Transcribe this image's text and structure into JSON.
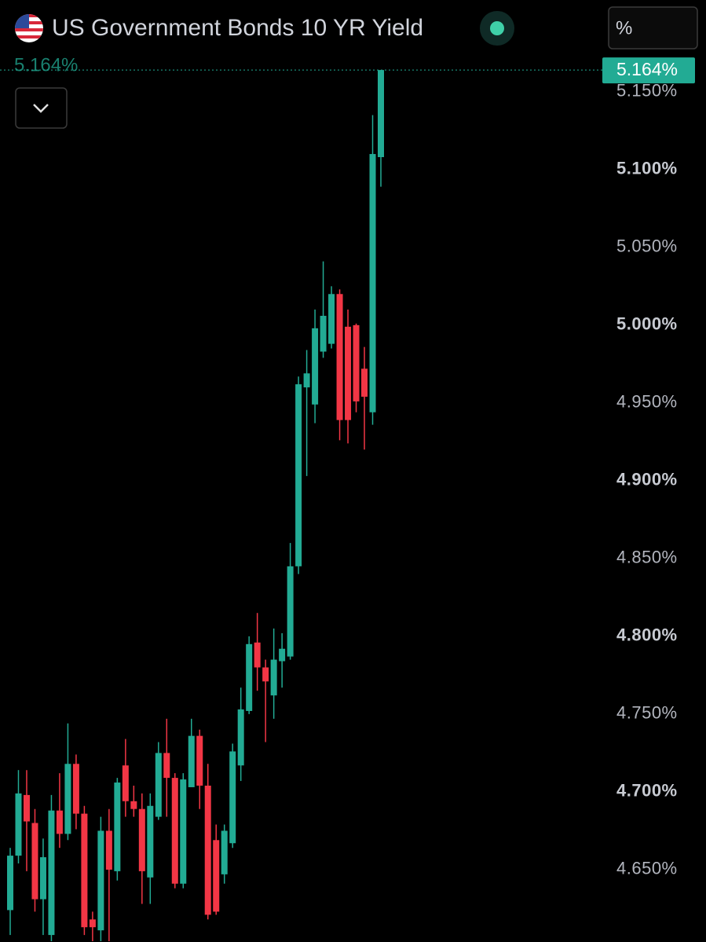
{
  "chart_data": {
    "type": "candlestick",
    "title": "US Government Bonds 10 YR Yield",
    "unit_button": "%",
    "last_price": {
      "value": 5.164,
      "label": "5.164%"
    },
    "up_color": "#22ab94",
    "down_color": "#f23645",
    "grid": false,
    "ylim": [
      4.6035,
      5.209
    ],
    "yticks": [
      {
        "value": 4.65,
        "label": "4.650%"
      },
      {
        "value": 4.7,
        "label": "4.700%"
      },
      {
        "value": 4.75,
        "label": "4.750%"
      },
      {
        "value": 4.8,
        "label": "4.800%"
      },
      {
        "value": 4.85,
        "label": "4.850%"
      },
      {
        "value": 4.9,
        "label": "4.900%"
      },
      {
        "value": 4.95,
        "label": "4.950%"
      },
      {
        "value": 5.0,
        "label": "5.000%"
      },
      {
        "value": 5.05,
        "label": "5.050%"
      },
      {
        "value": 5.1,
        "label": "5.100%"
      },
      {
        "value": 5.15,
        "label": "5.150%"
      }
    ],
    "open": [
      4.624,
      4.659,
      4.698,
      4.68,
      4.631,
      4.608,
      4.688,
      4.673,
      4.718,
      4.686,
      4.618,
      4.611,
      4.675,
      4.649,
      4.717,
      4.694,
      4.689,
      4.645,
      4.684,
      4.725,
      4.709,
      4.641,
      4.703,
      4.736,
      4.704,
      4.669,
      4.647,
      4.667,
      4.717,
      4.752,
      4.796,
      4.78,
      4.762,
      4.784,
      4.787,
      4.845,
      4.96,
      4.949,
      4.983,
      4.988,
      5.02,
      4.999,
      5.0,
      4.972,
      4.944,
      5.108
    ],
    "high": [
      4.664,
      4.714,
      4.714,
      4.689,
      4.67,
      4.698,
      4.712,
      4.744,
      4.724,
      4.691,
      4.623,
      4.684,
      4.689,
      4.709,
      4.734,
      4.704,
      4.699,
      4.699,
      4.732,
      4.747,
      4.712,
      4.712,
      4.747,
      4.74,
      4.718,
      4.679,
      4.679,
      4.731,
      4.767,
      4.8,
      4.815,
      4.785,
      4.805,
      4.802,
      4.86,
      4.967,
      4.984,
      5.01,
      5.041,
      5.025,
      5.023,
      5.01,
      5.001,
      4.986,
      5.135,
      5.164
    ],
    "low": [
      4.608,
      4.654,
      4.649,
      4.623,
      4.608,
      4.604,
      4.664,
      4.669,
      4.676,
      4.608,
      4.604,
      4.604,
      4.604,
      4.643,
      4.684,
      4.684,
      4.628,
      4.628,
      4.682,
      4.684,
      4.638,
      4.638,
      4.706,
      4.689,
      4.618,
      4.621,
      4.641,
      4.664,
      4.707,
      4.75,
      4.765,
      4.732,
      4.747,
      4.767,
      4.785,
      4.84,
      4.903,
      4.937,
      4.979,
      4.985,
      4.926,
      4.924,
      4.944,
      4.92,
      4.936,
      5.089
    ],
    "close": [
      4.659,
      4.699,
      4.681,
      4.631,
      4.658,
      4.688,
      4.673,
      4.718,
      4.686,
      4.613,
      4.613,
      4.675,
      4.65,
      4.706,
      4.694,
      4.689,
      4.649,
      4.691,
      4.725,
      4.709,
      4.641,
      4.708,
      4.736,
      4.704,
      4.621,
      4.623,
      4.675,
      4.726,
      4.753,
      4.795,
      4.78,
      4.771,
      4.785,
      4.792,
      4.845,
      4.962,
      4.969,
      4.998,
      5.006,
      5.02,
      4.939,
      4.939,
      4.951,
      4.954,
      5.11,
      5.164
    ]
  }
}
